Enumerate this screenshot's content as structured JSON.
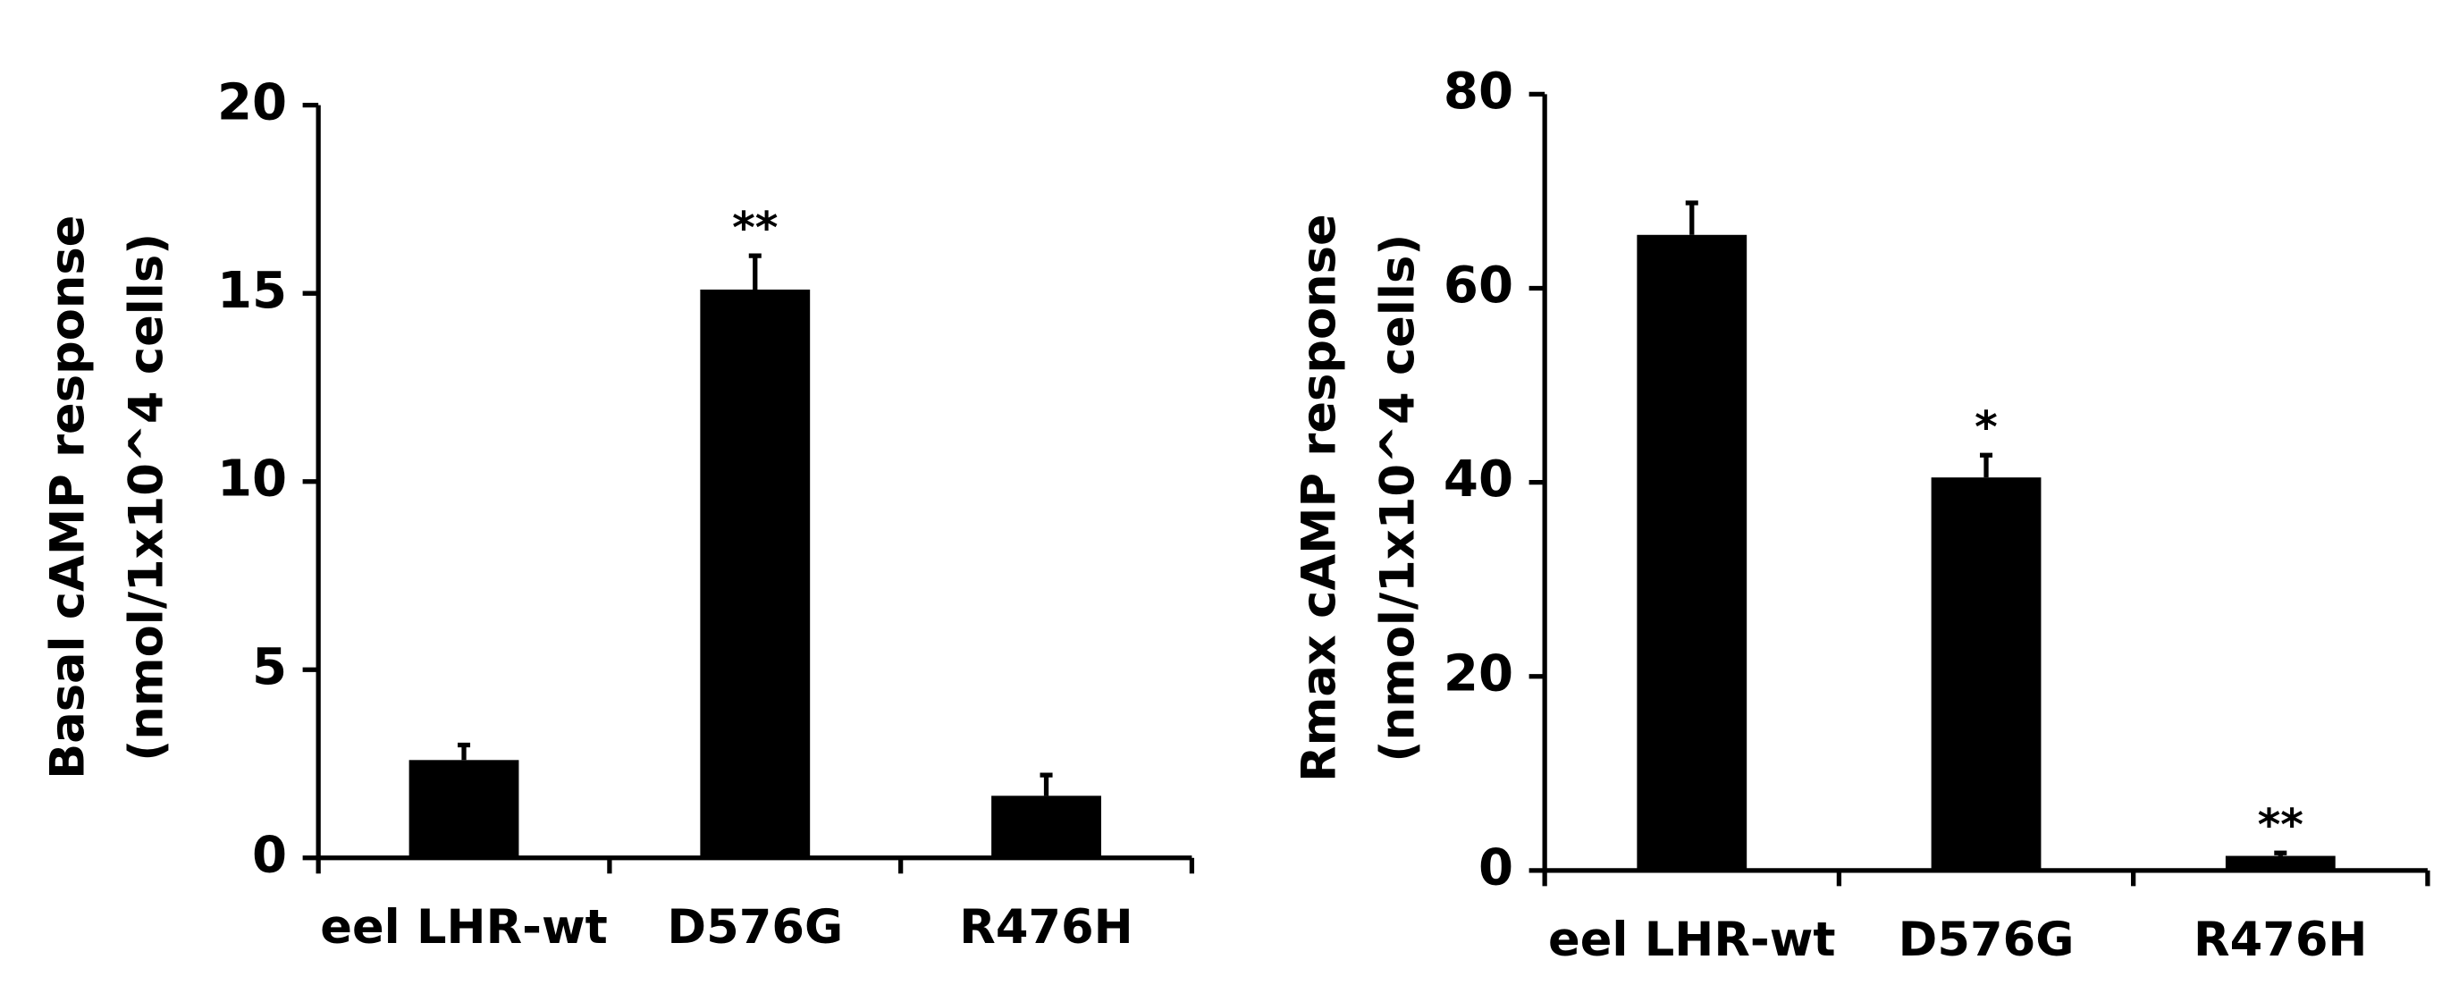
{
  "chart_data": [
    {
      "type": "bar",
      "ylabel": [
        "Basal cAMP response",
        "(nmol/1x10^4 cells)"
      ],
      "categories": [
        "eel LHR-wt",
        "D576G",
        "R476H"
      ],
      "values": [
        2.6,
        15.1,
        1.65
      ],
      "errors": [
        0.4,
        0.9,
        0.55
      ],
      "significance": [
        null,
        "**",
        null
      ],
      "color": "#000000",
      "ylim": [
        0,
        20
      ],
      "yticks": [
        0,
        5,
        10,
        15,
        20
      ]
    },
    {
      "type": "bar",
      "ylabel": [
        "Rmax cAMP response",
        "(nmol/1x10^4 cells)"
      ],
      "categories": [
        "eel LHR-wt",
        "D576G",
        "R476H"
      ],
      "values": [
        65.5,
        40.5,
        1.5
      ],
      "errors": [
        3.3,
        2.3,
        0.3
      ],
      "significance": [
        null,
        "*",
        "**"
      ],
      "color": "#000000",
      "ylim": [
        0,
        80
      ],
      "yticks": [
        0,
        20,
        40,
        60,
        80
      ]
    }
  ]
}
